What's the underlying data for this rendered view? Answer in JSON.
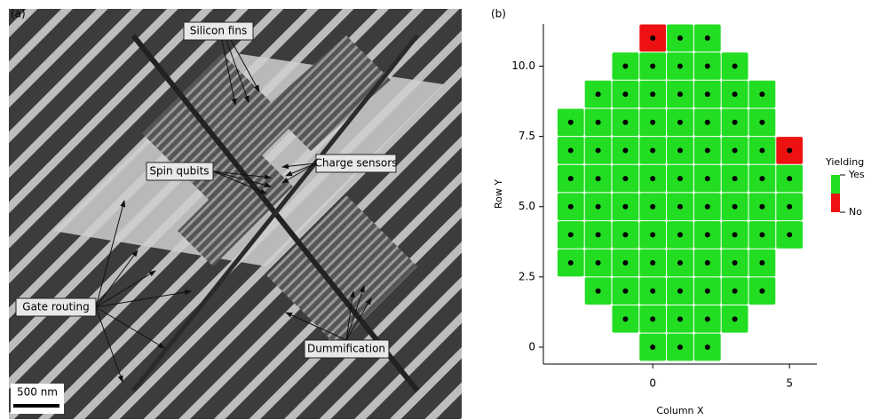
{
  "panel_a": {
    "label": "(a)",
    "annotations": [
      "Silicon fins",
      "Spin qubits",
      "Charge sensors",
      "Gate routing",
      "Dummification"
    ],
    "scale_bar": "500 nm"
  },
  "panel_b": {
    "label": "(b)"
  },
  "chart_data": {
    "type": "heatmap",
    "x_label": "Column X",
    "y_label": "Row Y",
    "legend_title": "Yielding",
    "xlim": [
      -4,
      6
    ],
    "xticks": [
      0,
      5
    ],
    "ylim": [
      -0.6,
      11.5
    ],
    "yticks": [
      0,
      2.5,
      {
        "value": 5,
        "label": "5.0"
      },
      7.5,
      {
        "value": 10,
        "label": "10.0"
      }
    ],
    "series": [
      {
        "name": "Yes",
        "color": "#22dd22",
        "x": [
          1,
          2,
          -1,
          0,
          1,
          2,
          3,
          -2,
          -1,
          0,
          1,
          2,
          3,
          4,
          -3,
          -2,
          -1,
          0,
          1,
          2,
          3,
          4,
          -3,
          -2,
          -1,
          0,
          1,
          2,
          3,
          4,
          -3,
          -2,
          -1,
          0,
          1,
          2,
          3,
          4,
          5,
          -3,
          -2,
          -1,
          0,
          1,
          2,
          3,
          4,
          5,
          -3,
          -2,
          -1,
          0,
          1,
          2,
          3,
          4,
          5,
          -3,
          -2,
          -1,
          0,
          1,
          2,
          3,
          4,
          -2,
          -1,
          0,
          1,
          2,
          3,
          4,
          -1,
          0,
          1,
          2,
          3,
          0,
          1,
          2
        ],
        "y": [
          11,
          11,
          10,
          10,
          10,
          10,
          10,
          9,
          9,
          9,
          9,
          9,
          9,
          9,
          8,
          8,
          8,
          8,
          8,
          8,
          8,
          8,
          7,
          7,
          7,
          7,
          7,
          7,
          7,
          7,
          6,
          6,
          6,
          6,
          6,
          6,
          6,
          6,
          6,
          5,
          5,
          5,
          5,
          5,
          5,
          5,
          5,
          5,
          4,
          4,
          4,
          4,
          4,
          4,
          4,
          4,
          4,
          3,
          3,
          3,
          3,
          3,
          3,
          3,
          3,
          2,
          2,
          2,
          2,
          2,
          2,
          2,
          1,
          1,
          1,
          1,
          1,
          0,
          0,
          0
        ]
      },
      {
        "name": "No",
        "color": "#ee1111",
        "x": [
          0,
          5
        ],
        "y": [
          11,
          7
        ]
      }
    ]
  }
}
